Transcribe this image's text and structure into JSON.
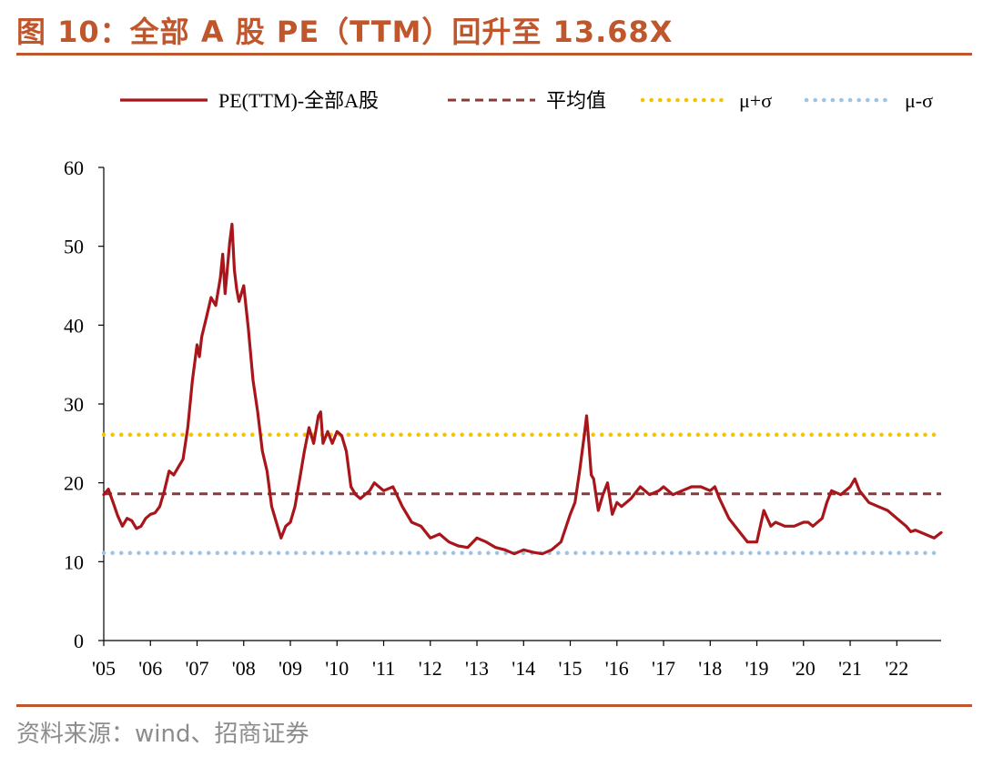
{
  "header": {
    "title": "图 10：全部 A 股 PE（TTM）回升至 13.68X"
  },
  "footer": {
    "source": "资料来源：wind、招商证券"
  },
  "colors": {
    "pe": "#a8161b",
    "mean": "#8b3a3a",
    "upper": "#f5c400",
    "lower": "#9dc3e6",
    "accent": "#c0562b"
  },
  "chart_data": {
    "type": "line",
    "title": "图 10：全部 A 股 PE（TTM）回升至 13.68X",
    "xlabel": "",
    "ylabel": "",
    "ylim": [
      0,
      60
    ],
    "yticks": [
      "0",
      "10",
      "20",
      "30",
      "40",
      "50",
      "60"
    ],
    "xlim": [
      2005.0,
      2022.95
    ],
    "xticks": [
      {
        "v": 2005,
        "label": "'05"
      },
      {
        "v": 2006,
        "label": "'06"
      },
      {
        "v": 2007,
        "label": "'07"
      },
      {
        "v": 2008,
        "label": "'08"
      },
      {
        "v": 2009,
        "label": "'09"
      },
      {
        "v": 2010,
        "label": "'10"
      },
      {
        "v": 2011,
        "label": "'11"
      },
      {
        "v": 2012,
        "label": "'12"
      },
      {
        "v": 2013,
        "label": "'13"
      },
      {
        "v": 2014,
        "label": "'14"
      },
      {
        "v": 2015,
        "label": "'15"
      },
      {
        "v": 2016,
        "label": "'16"
      },
      {
        "v": 2017,
        "label": "'17"
      },
      {
        "v": 2018,
        "label": "'18"
      },
      {
        "v": 2019,
        "label": "'19"
      },
      {
        "v": 2020,
        "label": "'20"
      },
      {
        "v": 2021,
        "label": "'21"
      },
      {
        "v": 2022,
        "label": "'22"
      }
    ],
    "grid": false,
    "legend_position": "top",
    "series": [
      {
        "name": "PE(TTM)-全部A股",
        "style": "solid",
        "x": [
          2005.0,
          2005.1,
          2005.2,
          2005.3,
          2005.4,
          2005.5,
          2005.6,
          2005.7,
          2005.8,
          2005.9,
          2006.0,
          2006.1,
          2006.2,
          2006.3,
          2006.4,
          2006.5,
          2006.6,
          2006.7,
          2006.8,
          2006.9,
          2007.0,
          2007.05,
          2007.1,
          2007.2,
          2007.3,
          2007.4,
          2007.5,
          2007.55,
          2007.6,
          2007.7,
          2007.75,
          2007.8,
          2007.85,
          2007.9,
          2008.0,
          2008.1,
          2008.2,
          2008.3,
          2008.4,
          2008.5,
          2008.6,
          2008.7,
          2008.8,
          2008.9,
          2009.0,
          2009.1,
          2009.2,
          2009.3,
          2009.4,
          2009.5,
          2009.6,
          2009.65,
          2009.7,
          2009.8,
          2009.9,
          2010.0,
          2010.1,
          2010.2,
          2010.3,
          2010.4,
          2010.5,
          2010.6,
          2010.7,
          2010.8,
          2010.9,
          2011.0,
          2011.2,
          2011.4,
          2011.6,
          2011.8,
          2012.0,
          2012.2,
          2012.4,
          2012.6,
          2012.8,
          2013.0,
          2013.2,
          2013.4,
          2013.6,
          2013.8,
          2014.0,
          2014.2,
          2014.4,
          2014.6,
          2014.8,
          2015.0,
          2015.1,
          2015.2,
          2015.3,
          2015.35,
          2015.4,
          2015.45,
          2015.5,
          2015.6,
          2015.7,
          2015.8,
          2015.9,
          2016.0,
          2016.1,
          2016.3,
          2016.5,
          2016.7,
          2016.9,
          2017.0,
          2017.2,
          2017.4,
          2017.6,
          2017.8,
          2018.0,
          2018.1,
          2018.2,
          2018.4,
          2018.6,
          2018.8,
          2019.0,
          2019.15,
          2019.3,
          2019.4,
          2019.6,
          2019.8,
          2020.0,
          2020.1,
          2020.2,
          2020.4,
          2020.5,
          2020.6,
          2020.8,
          2021.0,
          2021.1,
          2021.2,
          2021.4,
          2021.6,
          2021.8,
          2022.0,
          2022.2,
          2022.3,
          2022.4,
          2022.6,
          2022.8,
          2022.95
        ],
        "y": [
          18.5,
          19.2,
          17.5,
          15.8,
          14.5,
          15.5,
          15.2,
          14.2,
          14.5,
          15.5,
          16.0,
          16.2,
          17.0,
          19.0,
          21.5,
          21.0,
          22.0,
          23.0,
          27.0,
          33.0,
          37.5,
          36.0,
          38.5,
          41.0,
          43.5,
          42.5,
          46.0,
          49.0,
          44.0,
          50.5,
          52.8,
          47.0,
          44.5,
          43.0,
          45.0,
          39.5,
          33.0,
          29.0,
          24.0,
          21.5,
          17.0,
          15.0,
          13.0,
          14.5,
          15.0,
          17.0,
          20.5,
          24.0,
          27.0,
          25.0,
          28.5,
          29.0,
          25.0,
          26.5,
          25.0,
          26.5,
          26.0,
          24.0,
          19.5,
          18.5,
          18.0,
          18.5,
          19.0,
          20.0,
          19.5,
          19.0,
          19.5,
          17.0,
          15.0,
          14.5,
          13.0,
          13.5,
          12.5,
          12.0,
          11.8,
          13.0,
          12.5,
          11.8,
          11.5,
          11.0,
          11.5,
          11.2,
          11.0,
          11.5,
          12.5,
          16.0,
          17.5,
          21.5,
          26.0,
          28.5,
          25.0,
          21.0,
          20.5,
          16.5,
          18.5,
          20.0,
          16.0,
          17.5,
          17.0,
          18.0,
          19.5,
          18.5,
          19.0,
          19.5,
          18.5,
          19.0,
          19.5,
          19.5,
          19.0,
          19.5,
          18.0,
          15.5,
          14.0,
          12.5,
          12.5,
          16.5,
          14.5,
          15.0,
          14.5,
          14.5,
          15.0,
          15.0,
          14.5,
          15.5,
          17.5,
          19.0,
          18.5,
          19.5,
          20.5,
          19.0,
          17.5,
          17.0,
          16.5,
          15.5,
          14.5,
          13.8,
          14.0,
          13.5,
          13.0,
          13.68
        ]
      },
      {
        "name": "平均值",
        "style": "dashed",
        "x": [
          2005.0,
          2022.95
        ],
        "y": [
          18.6,
          18.6
        ]
      },
      {
        "name": "μ+σ",
        "style": "dotted",
        "x": [
          2005.0,
          2022.95
        ],
        "y": [
          26.1,
          26.1
        ]
      },
      {
        "name": "μ-σ",
        "style": "dotted",
        "x": [
          2005.0,
          2022.95
        ],
        "y": [
          11.1,
          11.1
        ]
      }
    ]
  }
}
